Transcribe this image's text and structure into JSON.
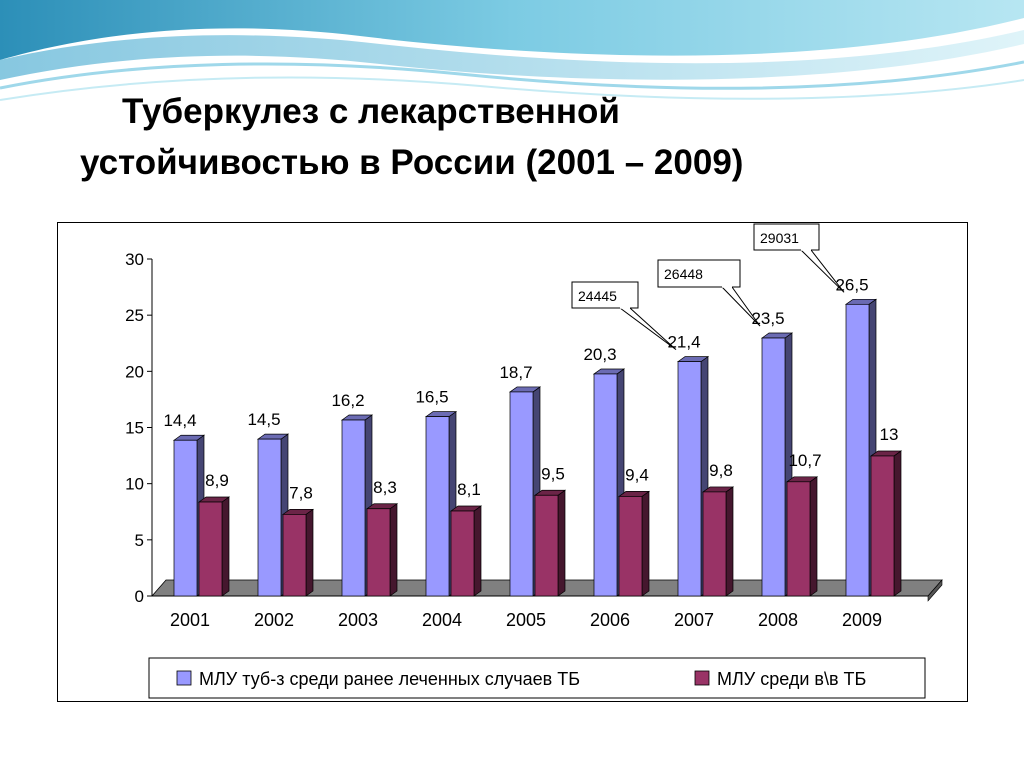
{
  "title": {
    "line1": "Туберкулез с лекарственной",
    "line2": "устойчивостью в России (2001 – 2009)"
  },
  "chart_data": {
    "type": "bar",
    "categories": [
      "2001",
      "2002",
      "2003",
      "2004",
      "2005",
      "2006",
      "2007",
      "2008",
      "2009"
    ],
    "series": [
      {
        "name": "МЛУ туб-з среди ранее леченных случаев ТБ",
        "color": "#9999ff",
        "values": [
          14.4,
          14.5,
          16.2,
          16.5,
          18.7,
          20.3,
          21.4,
          23.5,
          26.5
        ],
        "labels": [
          "14,4",
          "14,5",
          "16,2",
          "16,5",
          "18,7",
          "20,3",
          "21,4",
          "23,5",
          "26,5"
        ]
      },
      {
        "name": "МЛУ среди в\\в ТБ",
        "color": "#993366",
        "values": [
          8.9,
          7.8,
          8.3,
          8.1,
          9.5,
          9.4,
          9.8,
          10.7,
          13
        ],
        "labels": [
          "8,9",
          "7,8",
          "8,3",
          "8,1",
          "9,5",
          "9,4",
          "9,8",
          "10,7",
          "13"
        ]
      }
    ],
    "ylim": [
      0,
      30
    ],
    "yticks": [
      0,
      5,
      10,
      15,
      20,
      25,
      30
    ],
    "annotations": [
      {
        "category": "2007",
        "text": "24445"
      },
      {
        "category": "2008",
        "text": "26448"
      },
      {
        "category": "2009",
        "text": "29031"
      }
    ],
    "legend": "bottom",
    "grid": false
  }
}
